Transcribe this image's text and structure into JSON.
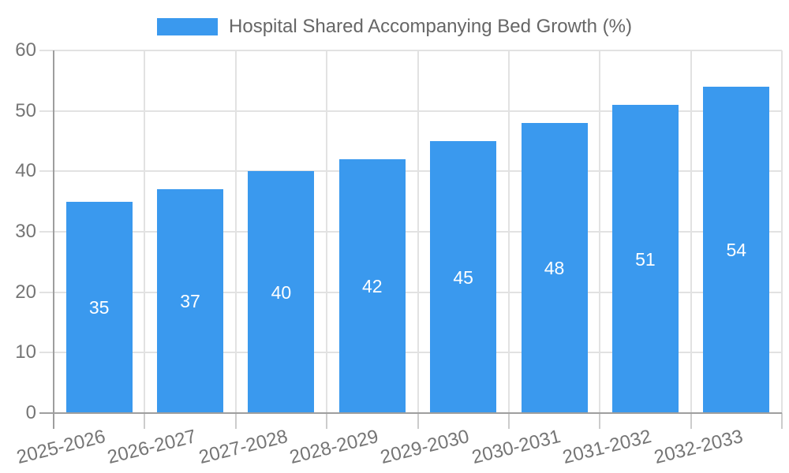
{
  "chart_data": {
    "type": "bar",
    "title": "Hospital Shared Accompanying Bed Growth (%)",
    "categories": [
      "2025-2026",
      "2026-2027",
      "2027-2028",
      "2028-2029",
      "2029-2030",
      "2030-2031",
      "2031-2032",
      "2032-2033"
    ],
    "values": [
      35,
      37,
      40,
      42,
      45,
      48,
      51,
      54
    ],
    "xlabel": "",
    "ylabel": "",
    "ylim": [
      0,
      60
    ],
    "yticks": [
      0,
      10,
      20,
      30,
      40,
      50,
      60
    ],
    "grid": true,
    "legend_position": "top",
    "value_labels_shown": true,
    "x_label_rotation_deg": -14
  },
  "colors": {
    "bar": "#3A99EE",
    "grid": "#E2E2E2",
    "axis": "#9E9E9E",
    "tick": "#CCCCCC",
    "tick_label": "#757575",
    "legend_text": "#666666",
    "value_label": "#FFFFFF",
    "background": "#FFFFFF"
  }
}
